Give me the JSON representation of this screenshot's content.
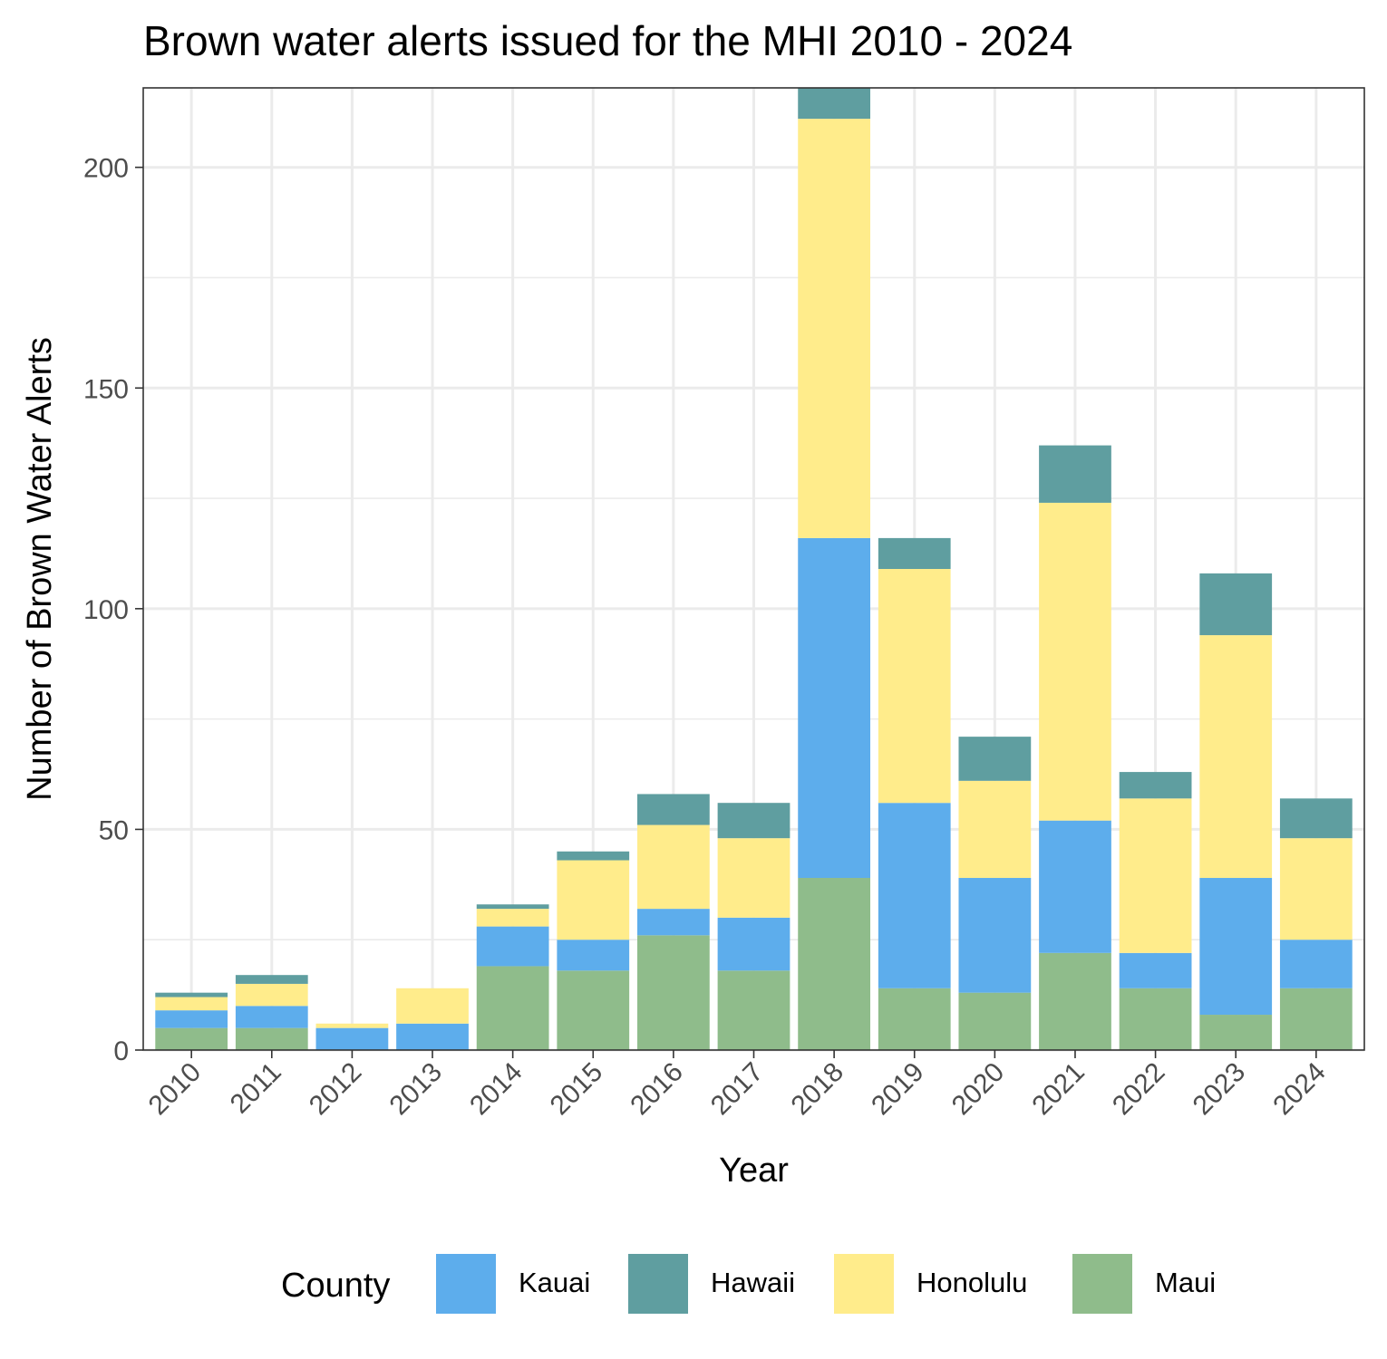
{
  "title": "Brown water alerts issued for the MHI 2010 - 2024",
  "chart_data": {
    "type": "bar",
    "stacked": true,
    "title": "Brown water alerts issued for the MHI 2010 - 2024",
    "xlabel": "Year",
    "ylabel": "Number of Brown Water Alerts",
    "categories": [
      "2010",
      "2011",
      "2012",
      "2013",
      "2014",
      "2015",
      "2016",
      "2017",
      "2018",
      "2019",
      "2020",
      "2021",
      "2022",
      "2023",
      "2024"
    ],
    "ylim": [
      0,
      218
    ],
    "yticks": [
      0,
      50,
      100,
      150,
      200
    ],
    "grid": true,
    "stack_order_bottom_to_top": [
      "Maui",
      "Kauai",
      "Honolulu",
      "Hawaii"
    ],
    "series": [
      {
        "name": "Maui",
        "color": "#8FBC8B",
        "values": [
          5,
          5,
          0,
          0,
          19,
          18,
          26,
          18,
          39,
          14,
          13,
          22,
          14,
          8,
          14
        ]
      },
      {
        "name": "Kauai",
        "color": "#5DADEC",
        "values": [
          4,
          5,
          5,
          6,
          9,
          7,
          6,
          12,
          77,
          42,
          26,
          30,
          8,
          31,
          11
        ]
      },
      {
        "name": "Honolulu",
        "color": "#FFEC8B",
        "values": [
          3,
          5,
          1,
          8,
          4,
          18,
          19,
          18,
          95,
          53,
          22,
          72,
          35,
          55,
          23
        ]
      },
      {
        "name": "Hawaii",
        "color": "#5F9EA0",
        "values": [
          1,
          2,
          0,
          0,
          1,
          2,
          7,
          8,
          7,
          7,
          10,
          13,
          6,
          14,
          9
        ]
      }
    ],
    "legend": {
      "title": "County",
      "position": "bottom",
      "order": [
        "Kauai",
        "Hawaii",
        "Honolulu",
        "Maui"
      ]
    }
  }
}
